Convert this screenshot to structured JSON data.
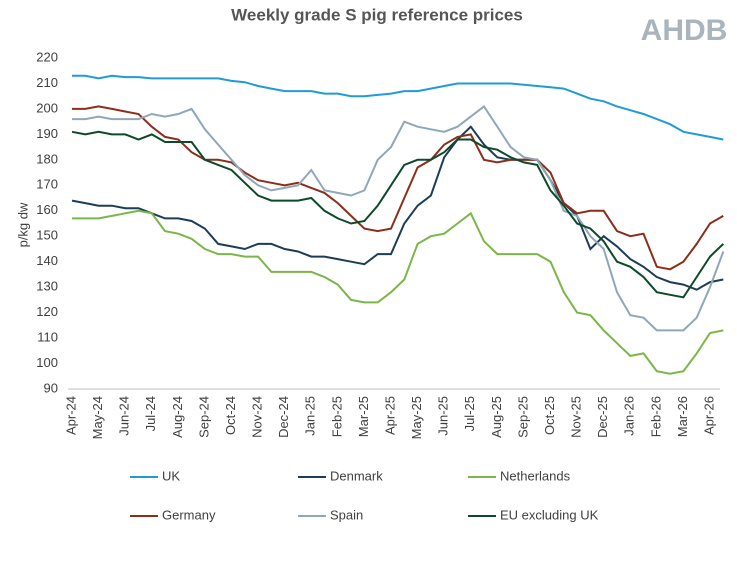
{
  "logo": "AHDB",
  "chart_data": {
    "type": "line",
    "title": "Weekly grade S pig reference prices",
    "y_label": "p/kg dw",
    "categories": [
      "Apr-24",
      null,
      "May-24",
      null,
      "Jun-24",
      null,
      "Jul-24",
      null,
      "Aug-24",
      null,
      "Sep-24",
      null,
      "Oct-24",
      null,
      "Nov-24",
      null,
      "Dec-24",
      null,
      "Jan-25",
      null,
      "Feb-25",
      null,
      "Mar-25",
      null,
      "Apr-25",
      null,
      "May-25",
      null,
      "Jun-25",
      null,
      "Jul-25",
      null,
      "Aug-25",
      null,
      "Sep-25",
      null,
      "Oct-25",
      null,
      "Nov-25",
      null,
      "Dec-25",
      null,
      "Jan-26",
      null,
      "Feb-26",
      null,
      "Mar-26",
      null,
      "Apr-26",
      null
    ],
    "ylim": [
      90,
      220
    ],
    "yticks": [
      90,
      100,
      110,
      120,
      130,
      140,
      150,
      160,
      170,
      180,
      190,
      200,
      210,
      220
    ],
    "grid": false,
    "series": [
      {
        "name": "UK",
        "color": "#1f9bd7",
        "values": [
          213,
          213,
          212,
          213,
          212.5,
          212.5,
          212,
          212,
          212,
          212,
          212,
          212,
          211,
          210.5,
          209,
          208,
          207,
          207,
          207,
          206,
          206,
          205,
          205,
          205.5,
          206,
          207,
          207,
          208,
          209,
          210,
          210,
          210,
          210,
          210,
          209.5,
          209,
          208.5,
          208,
          206,
          204,
          203,
          201,
          199.5,
          198,
          196,
          194,
          191,
          190,
          189,
          188
        ]
      },
      {
        "name": "Denmark",
        "color": "#1d3c57",
        "values": [
          164,
          163,
          162,
          162,
          161,
          161,
          159,
          157,
          157,
          156,
          153,
          147,
          146,
          145,
          147,
          147,
          145,
          144,
          142,
          142,
          141,
          140,
          139,
          143,
          143,
          155,
          162,
          166,
          181,
          188,
          193,
          186,
          181,
          180,
          180,
          180,
          172,
          163,
          158,
          145,
          150,
          146,
          141,
          138,
          134,
          132,
          131,
          129,
          132,
          133
        ]
      },
      {
        "name": "Netherlands",
        "color": "#7ab648",
        "values": [
          157,
          157,
          157,
          158,
          159,
          160,
          159,
          152,
          151,
          149,
          145,
          143,
          143,
          142,
          142,
          136,
          136,
          136,
          136,
          134,
          131,
          125,
          124,
          124,
          128,
          133,
          147,
          150,
          151,
          155,
          159,
          148,
          143,
          143,
          143,
          143,
          140,
          128,
          120,
          119,
          113,
          108,
          103,
          104,
          97,
          96,
          97,
          104,
          112,
          113
        ]
      },
      {
        "name": "Germany",
        "color": "#8b2e1a",
        "values": [
          200,
          200,
          201,
          200,
          199,
          198,
          193,
          189,
          188,
          183,
          180,
          180,
          179,
          175,
          172,
          171,
          170,
          171,
          169,
          167,
          163,
          158,
          153,
          152,
          153,
          165,
          177,
          180,
          186,
          189,
          190,
          180,
          179,
          180,
          180,
          180,
          175,
          163,
          159,
          160,
          160,
          152,
          150,
          151,
          138,
          137,
          140,
          147,
          155,
          158
        ]
      },
      {
        "name": "Spain",
        "color": "#8fa7b8",
        "values": [
          196,
          196,
          197,
          196,
          196,
          196,
          198,
          197,
          198,
          200,
          192,
          186,
          180,
          174,
          170,
          168,
          169,
          170,
          176,
          168,
          167,
          166,
          168,
          180,
          185,
          195,
          193,
          192,
          191,
          193,
          197,
          201,
          193,
          185,
          181,
          180,
          172,
          160,
          158,
          150,
          145,
          128,
          119,
          118,
          113,
          113,
          113,
          118,
          130,
          144
        ]
      },
      {
        "name": "EU excluding UK",
        "color": "#0d4a2a",
        "values": [
          191,
          190,
          191,
          190,
          190,
          188,
          190,
          187,
          187,
          187,
          180,
          178,
          176,
          171,
          166,
          164,
          164,
          164,
          165,
          160,
          157,
          155,
          156,
          162,
          170,
          178,
          180,
          180,
          183,
          188,
          188,
          185,
          184,
          181,
          179,
          178,
          168,
          162,
          155,
          153,
          148,
          140,
          138,
          134,
          128,
          127,
          126,
          134,
          142,
          147
        ]
      }
    ]
  }
}
